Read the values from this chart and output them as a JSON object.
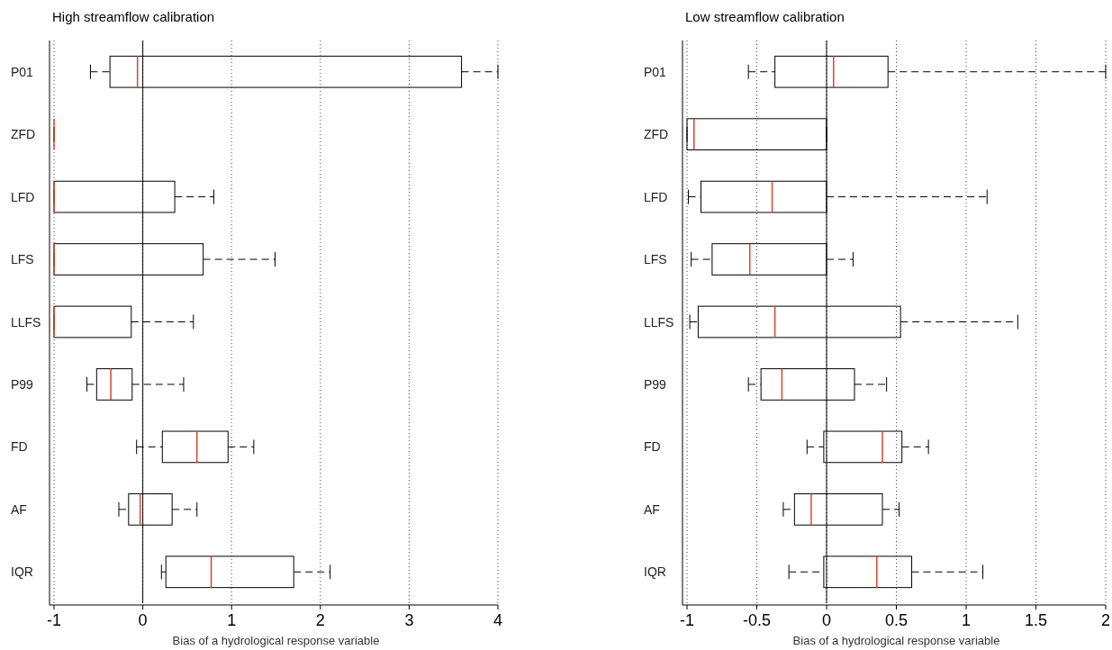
{
  "chart_data": [
    {
      "type": "box",
      "title": "High streamflow calibration",
      "xlabel": "Bias of a hydrological response variable",
      "orientation": "horizontal",
      "categories": [
        "P01",
        "ZFD",
        "LFD",
        "LFS",
        "LLFS",
        "P99",
        "FD",
        "AF",
        "IQR"
      ],
      "xlim": [
        -1,
        4
      ],
      "xticks": [
        -1,
        0,
        1,
        2,
        3,
        4
      ],
      "grid": "x",
      "ref_lines": [
        {
          "axis": "x",
          "value": 0,
          "color": "#000000",
          "line_style": "solid"
        }
      ],
      "series": [
        {
          "color": "#000000",
          "boxes": [
            {
              "low": -0.59,
              "q1": -0.37,
              "median": -0.06,
              "q3": 3.59,
              "high": 4.0
            },
            {
              "low": -1,
              "q1": -1,
              "median": -1,
              "q3": -1,
              "high": -1
            },
            {
              "low": -1,
              "q1": -1,
              "median": -1,
              "q3": 0.36,
              "high": 0.8
            },
            {
              "low": -1,
              "q1": -1,
              "median": -1,
              "q3": 0.68,
              "high": 1.49
            },
            {
              "low": -1,
              "q1": -1,
              "median": -1,
              "q3": -0.13,
              "high": 0.57
            },
            {
              "low": -0.63,
              "q1": -0.52,
              "median": -0.36,
              "q3": -0.12,
              "high": 0.46
            },
            {
              "low": -0.07,
              "q1": 0.22,
              "median": 0.61,
              "q3": 0.96,
              "high": 1.25
            },
            {
              "low": -0.27,
              "q1": -0.16,
              "median": -0.03,
              "q3": 0.33,
              "high": 0.61
            },
            {
              "low": 0.21,
              "q1": 0.26,
              "median": 0.77,
              "q3": 1.7,
              "high": 2.11
            }
          ]
        }
      ]
    },
    {
      "type": "box",
      "title": "Low streamflow calibration",
      "xlabel": "Bias of a hydrological response variable",
      "orientation": "horizontal",
      "categories": [
        "P01",
        "ZFD",
        "LFD",
        "LFS",
        "LLFS",
        "P99",
        "FD",
        "AF",
        "IQR"
      ],
      "xlim": [
        -1,
        2
      ],
      "xticks": [
        -1,
        -0.5,
        0,
        0.5,
        1,
        1.5,
        2
      ],
      "grid": "x",
      "ref_lines": [
        {
          "axis": "x",
          "value": 0,
          "color": "#000000",
          "line_style": "solid"
        }
      ],
      "series": [
        {
          "color": "#000000",
          "boxes": [
            {
              "low": -0.56,
              "q1": -0.37,
              "median": 0.05,
              "q3": 0.44,
              "high": 2.0
            },
            {
              "low": -1,
              "q1": -1,
              "median": -0.95,
              "q3": 0,
              "high": 0
            },
            {
              "low": -0.99,
              "q1": -0.9,
              "median": -0.39,
              "q3": 0,
              "high": 1.15
            },
            {
              "low": -0.97,
              "q1": -0.82,
              "median": -0.55,
              "q3": 0,
              "high": 0.19
            },
            {
              "low": -0.98,
              "q1": -0.92,
              "median": -0.37,
              "q3": 0.53,
              "high": 1.37
            },
            {
              "low": -0.56,
              "q1": -0.47,
              "median": -0.32,
              "q3": 0.2,
              "high": 0.43
            },
            {
              "low": -0.14,
              "q1": -0.02,
              "median": 0.4,
              "q3": 0.54,
              "high": 0.73
            },
            {
              "low": -0.31,
              "q1": -0.23,
              "median": -0.11,
              "q3": 0.4,
              "high": 0.52
            },
            {
              "low": -0.27,
              "q1": -0.02,
              "median": 0.36,
              "q3": 0.61,
              "high": 1.12
            }
          ]
        }
      ]
    }
  ]
}
